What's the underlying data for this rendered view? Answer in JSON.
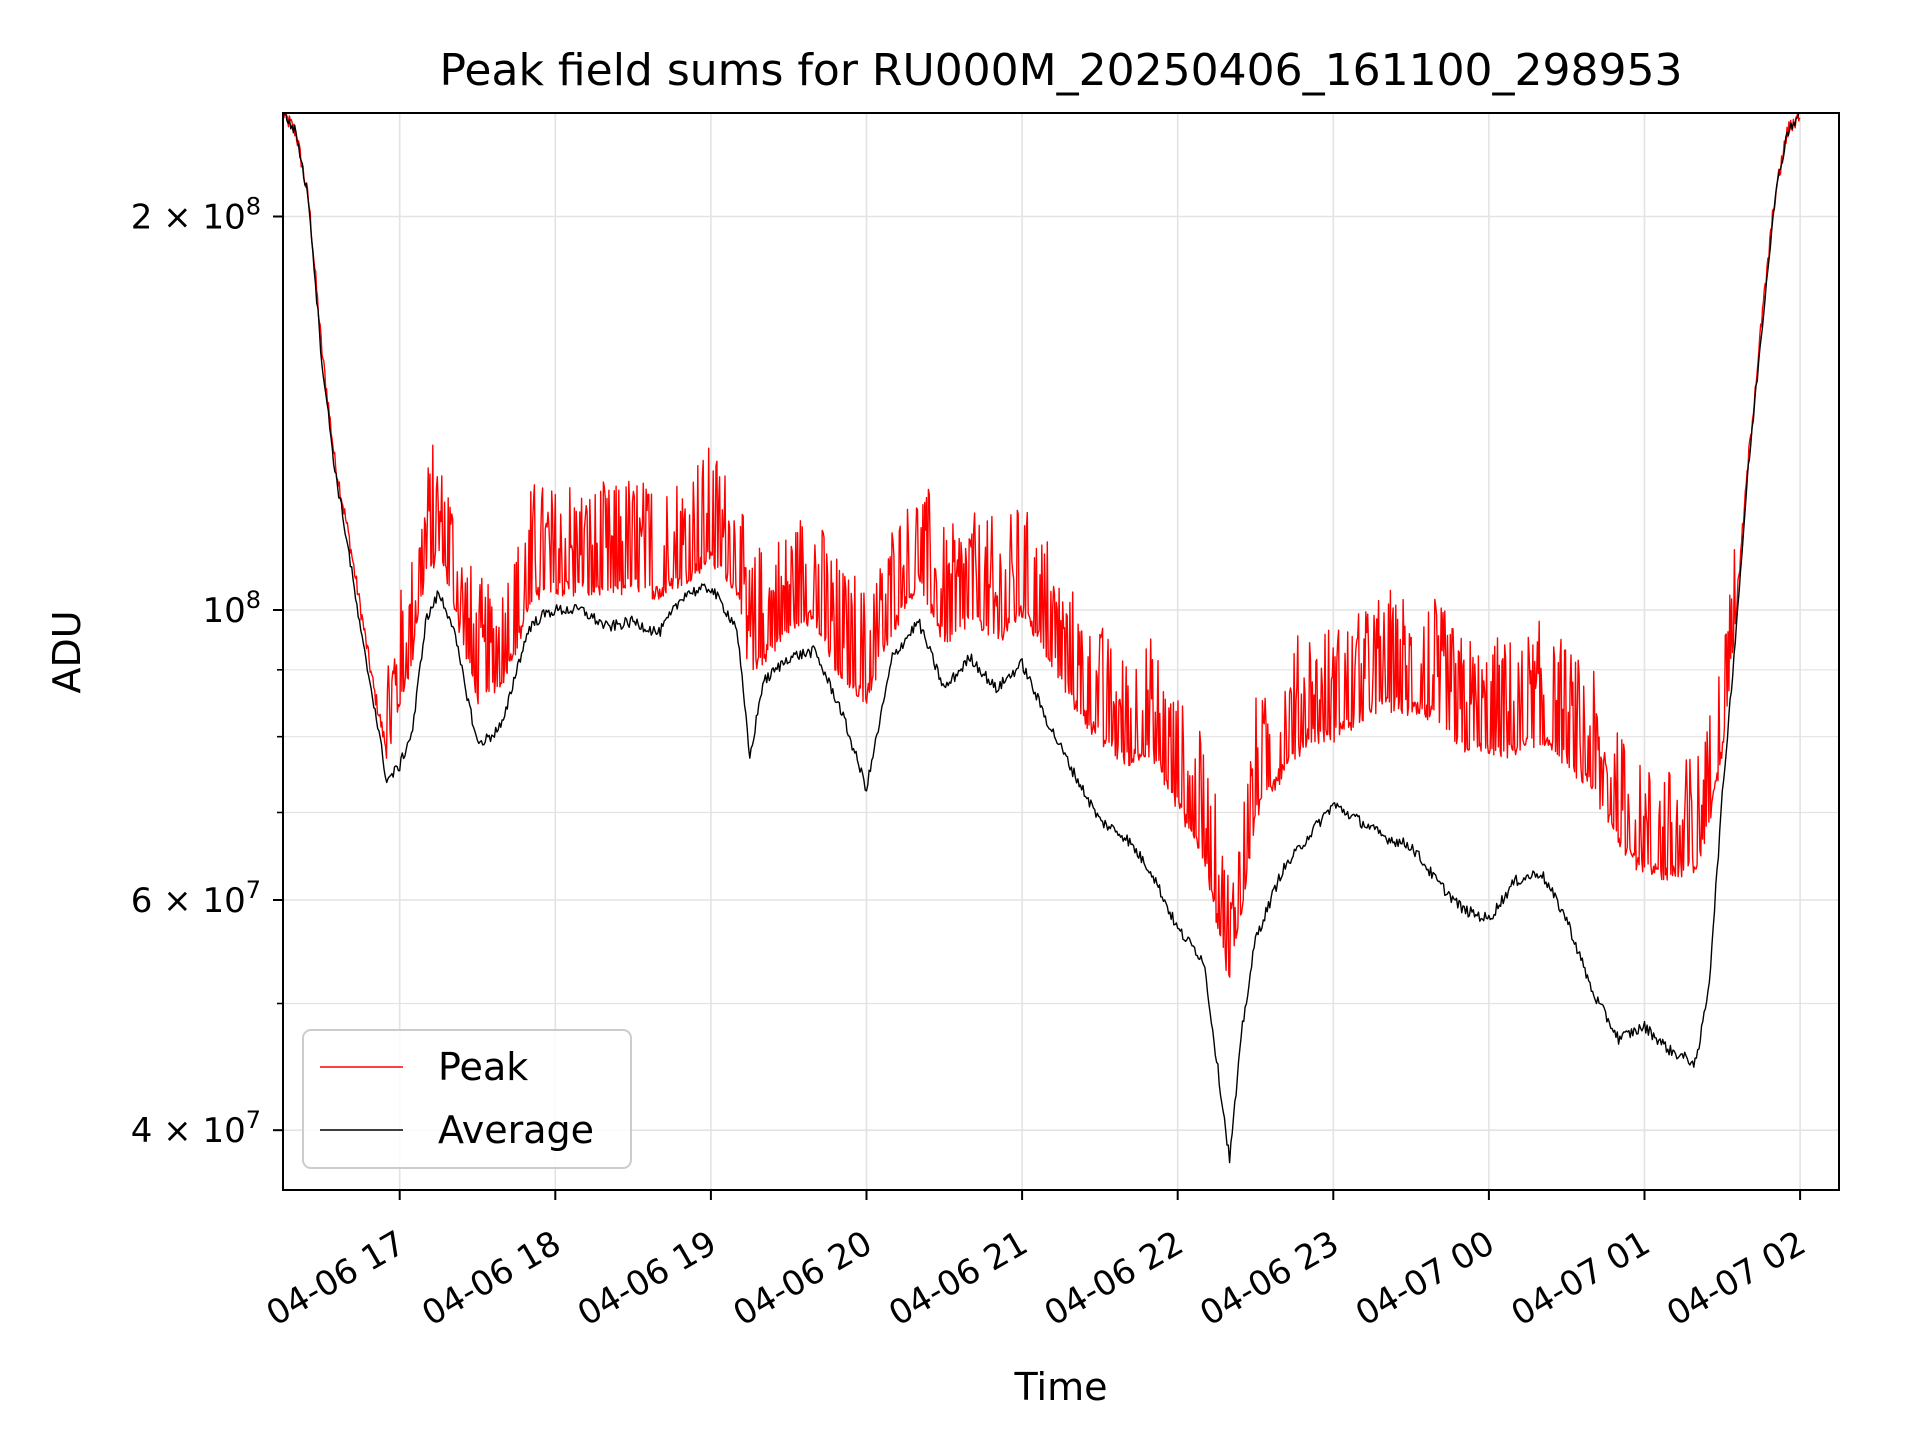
{
  "chart_data": {
    "type": "line",
    "title": "Peak field sums for RU000M_20250406_161100_298953",
    "xlabel": "Time",
    "ylabel": "ADU",
    "y_scale": "log",
    "ylim": [
      36000000,
      240000000
    ],
    "xlim": [
      "04-06 16:15",
      "04-07 02:15"
    ],
    "x_ticks": [
      {
        "label": "04-06 17",
        "t": "04-06 17:00"
      },
      {
        "label": "04-06 18",
        "t": "04-06 18:00"
      },
      {
        "label": "04-06 19",
        "t": "04-06 19:00"
      },
      {
        "label": "04-06 20",
        "t": "04-06 20:00"
      },
      {
        "label": "04-06 21",
        "t": "04-06 21:00"
      },
      {
        "label": "04-06 22",
        "t": "04-06 22:00"
      },
      {
        "label": "04-06 23",
        "t": "04-06 23:00"
      },
      {
        "label": "04-07 00",
        "t": "04-07 00:00"
      },
      {
        "label": "04-07 01",
        "t": "04-07 01:00"
      },
      {
        "label": "04-07 02",
        "t": "04-07 02:00"
      }
    ],
    "y_major_ticks": [
      {
        "value": 40000000,
        "mantissa": "4",
        "exp": "7"
      },
      {
        "value": 60000000,
        "mantissa": "6",
        "exp": "7"
      },
      {
        "value": 100000000,
        "mantissa": "",
        "exp": "8"
      },
      {
        "value": 200000000,
        "mantissa": "2",
        "exp": "8"
      }
    ],
    "y_minor_ticks": [
      50000000,
      70000000,
      80000000,
      90000000
    ],
    "grid": true,
    "legend_position": "lower-left",
    "series": [
      {
        "name": "Peak",
        "color": "#ff0000",
        "points": [
          [
            "04-06 16:15",
            240000000
          ],
          [
            "04-06 16:20",
            232000000
          ],
          [
            "04-06 16:25",
            205000000
          ],
          [
            "04-06 16:30",
            158000000
          ],
          [
            "04-06 16:35",
            130000000
          ],
          [
            "04-06 16:40",
            115000000
          ],
          [
            "04-06 16:45",
            100000000
          ],
          [
            "04-06 16:50",
            87000000
          ],
          [
            "04-06 16:55",
            78000000
          ],
          [
            "04-06 17:00",
            85000000
          ],
          [
            "04-06 17:05",
            92000000
          ],
          [
            "04-06 17:10",
            108000000
          ],
          [
            "04-06 17:15",
            110000000
          ],
          [
            "04-06 17:20",
            104000000
          ],
          [
            "04-06 17:25",
            93000000
          ],
          [
            "04-06 17:30",
            86000000
          ],
          [
            "04-06 17:35",
            87000000
          ],
          [
            "04-06 17:40",
            89000000
          ],
          [
            "04-06 17:45",
            94000000
          ],
          [
            "04-06 17:50",
            101000000
          ],
          [
            "04-06 17:55",
            104000000
          ],
          [
            "04-06 18:00",
            104000000
          ],
          [
            "04-06 18:10",
            104000000
          ],
          [
            "04-06 18:20",
            103000000
          ],
          [
            "04-06 18:30",
            105000000
          ],
          [
            "04-06 18:40",
            103000000
          ],
          [
            "04-06 18:50",
            106000000
          ],
          [
            "04-06 19:00",
            110000000
          ],
          [
            "04-06 19:10",
            104000000
          ],
          [
            "04-06 19:15",
            90000000
          ],
          [
            "04-06 19:20",
            92000000
          ],
          [
            "04-06 19:30",
            97000000
          ],
          [
            "04-06 19:40",
            99000000
          ],
          [
            "04-06 19:50",
            89000000
          ],
          [
            "04-06 20:00",
            86000000
          ],
          [
            "04-06 20:10",
            97000000
          ],
          [
            "04-06 20:20",
            105000000
          ],
          [
            "04-06 20:30",
            95000000
          ],
          [
            "04-06 20:40",
            99000000
          ],
          [
            "04-06 20:50",
            95000000
          ],
          [
            "04-06 21:00",
            100000000
          ],
          [
            "04-06 21:10",
            93000000
          ],
          [
            "04-06 21:20",
            85000000
          ],
          [
            "04-06 21:30",
            80000000
          ],
          [
            "04-06 21:40",
            77000000
          ],
          [
            "04-06 21:50",
            78000000
          ],
          [
            "04-06 22:00",
            71000000
          ],
          [
            "04-06 22:10",
            65000000
          ],
          [
            "04-06 22:20",
            52000000
          ],
          [
            "04-06 22:25",
            60000000
          ],
          [
            "04-06 22:30",
            70000000
          ],
          [
            "04-06 22:40",
            75000000
          ],
          [
            "04-06 22:50",
            80000000
          ],
          [
            "04-06 23:00",
            80000000
          ],
          [
            "04-06 23:10",
            83000000
          ],
          [
            "04-06 23:20",
            85000000
          ],
          [
            "04-06 23:30",
            84000000
          ],
          [
            "04-06 23:40",
            83000000
          ],
          [
            "04-06 23:50",
            79000000
          ],
          [
            "04-07 00:00",
            78000000
          ],
          [
            "04-07 00:10",
            78000000
          ],
          [
            "04-07 00:20",
            80000000
          ],
          [
            "04-07 00:30",
            77000000
          ],
          [
            "04-07 00:40",
            73000000
          ],
          [
            "04-07 00:50",
            67000000
          ],
          [
            "04-07 01:00",
            63000000
          ],
          [
            "04-07 01:10",
            63000000
          ],
          [
            "04-07 01:20",
            64000000
          ],
          [
            "04-07 01:25",
            69000000
          ],
          [
            "04-07 01:30",
            78000000
          ],
          [
            "04-07 01:35",
            98000000
          ],
          [
            "04-07 01:40",
            130000000
          ],
          [
            "04-07 01:45",
            165000000
          ],
          [
            "04-07 01:50",
            205000000
          ],
          [
            "04-07 01:55",
            232000000
          ],
          [
            "04-07 02:00",
            240000000
          ]
        ]
      },
      {
        "name": "Average",
        "color": "#000000",
        "points": [
          [
            "04-06 16:15",
            240000000
          ],
          [
            "04-06 16:20",
            232000000
          ],
          [
            "04-06 16:25",
            205000000
          ],
          [
            "04-06 16:30",
            155000000
          ],
          [
            "04-06 16:35",
            128000000
          ],
          [
            "04-06 16:40",
            112000000
          ],
          [
            "04-06 16:45",
            96000000
          ],
          [
            "04-06 16:50",
            85000000
          ],
          [
            "04-06 16:55",
            74000000
          ],
          [
            "04-06 17:00",
            76000000
          ],
          [
            "04-06 17:05",
            81000000
          ],
          [
            "04-06 17:10",
            98000000
          ],
          [
            "04-06 17:15",
            103000000
          ],
          [
            "04-06 17:20",
            98000000
          ],
          [
            "04-06 17:25",
            88000000
          ],
          [
            "04-06 17:30",
            79000000
          ],
          [
            "04-06 17:35",
            80000000
          ],
          [
            "04-06 17:40",
            82000000
          ],
          [
            "04-06 17:45",
            90000000
          ],
          [
            "04-06 17:50",
            97000000
          ],
          [
            "04-06 17:55",
            99000000
          ],
          [
            "04-06 18:00",
            100000000
          ],
          [
            "04-06 18:10",
            100000000
          ],
          [
            "04-06 18:20",
            97000000
          ],
          [
            "04-06 18:30",
            98000000
          ],
          [
            "04-06 18:40",
            96000000
          ],
          [
            "04-06 18:50",
            103000000
          ],
          [
            "04-06 19:00",
            104000000
          ],
          [
            "04-06 19:10",
            97000000
          ],
          [
            "04-06 19:15",
            77000000
          ],
          [
            "04-06 19:20",
            88000000
          ],
          [
            "04-06 19:30",
            92000000
          ],
          [
            "04-06 19:40",
            93000000
          ],
          [
            "04-06 19:50",
            84000000
          ],
          [
            "04-06 20:00",
            73000000
          ],
          [
            "04-06 20:10",
            92000000
          ],
          [
            "04-06 20:20",
            98000000
          ],
          [
            "04-06 20:30",
            87000000
          ],
          [
            "04-06 20:40",
            92000000
          ],
          [
            "04-06 20:50",
            87000000
          ],
          [
            "04-06 21:00",
            91000000
          ],
          [
            "04-06 21:10",
            82000000
          ],
          [
            "04-06 21:20",
            75000000
          ],
          [
            "04-06 21:30",
            69000000
          ],
          [
            "04-06 21:40",
            67000000
          ],
          [
            "04-06 21:50",
            63000000
          ],
          [
            "04-06 22:00",
            57000000
          ],
          [
            "04-06 22:10",
            54000000
          ],
          [
            "04-06 22:20",
            38000000
          ],
          [
            "04-06 22:25",
            48000000
          ],
          [
            "04-06 22:30",
            56000000
          ],
          [
            "04-06 22:40",
            63000000
          ],
          [
            "04-06 22:50",
            67000000
          ],
          [
            "04-06 23:00",
            71000000
          ],
          [
            "04-06 23:10",
            69000000
          ],
          [
            "04-06 23:20",
            67000000
          ],
          [
            "04-06 23:30",
            66000000
          ],
          [
            "04-06 23:40",
            62000000
          ],
          [
            "04-06 23:50",
            59000000
          ],
          [
            "04-07 00:00",
            58000000
          ],
          [
            "04-07 00:10",
            62000000
          ],
          [
            "04-07 00:20",
            63000000
          ],
          [
            "04-07 00:30",
            58000000
          ],
          [
            "04-07 00:40",
            51000000
          ],
          [
            "04-07 00:50",
            47000000
          ],
          [
            "04-07 01:00",
            48000000
          ],
          [
            "04-07 01:10",
            46000000
          ],
          [
            "04-07 01:20",
            45000000
          ],
          [
            "04-07 01:25",
            52000000
          ],
          [
            "04-07 01:30",
            72000000
          ],
          [
            "04-07 01:35",
            95000000
          ],
          [
            "04-07 01:40",
            128000000
          ],
          [
            "04-07 01:45",
            162000000
          ],
          [
            "04-07 01:50",
            205000000
          ],
          [
            "04-07 01:55",
            232000000
          ],
          [
            "04-07 02:00",
            240000000
          ]
        ]
      }
    ]
  }
}
